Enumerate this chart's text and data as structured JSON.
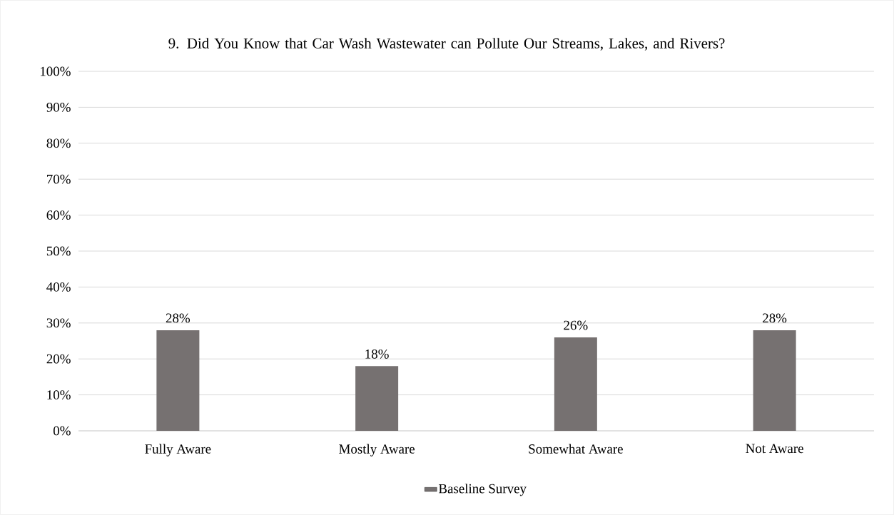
{
  "chart_data": {
    "type": "bar",
    "title": "9. Did You Know that Car Wash Wastewater can Pollute Our Streams, Lakes, and Rivers?",
    "categories": [
      "Fully Aware",
      "Mostly Aware",
      "Somewhat Aware",
      "Not Aware"
    ],
    "series": [
      {
        "name": "Baseline Survey",
        "color": "#767171",
        "values": [
          28,
          18,
          26,
          28
        ],
        "value_labels": [
          "28%",
          "18%",
          "26%",
          "28%"
        ]
      }
    ],
    "ylim": [
      0,
      100
    ],
    "yticks": [
      {
        "value": 0,
        "label": "0%"
      },
      {
        "value": 10,
        "label": "10%"
      },
      {
        "value": 20,
        "label": "20%"
      },
      {
        "value": 30,
        "label": "30%"
      },
      {
        "value": 40,
        "label": "40%"
      },
      {
        "value": 50,
        "label": "50%"
      },
      {
        "value": 60,
        "label": "60%"
      },
      {
        "value": 70,
        "label": "70%"
      },
      {
        "value": 80,
        "label": "80%"
      },
      {
        "value": 90,
        "label": "90%"
      },
      {
        "value": 100,
        "label": "100%"
      }
    ],
    "grid": "y",
    "legend": "bottom"
  }
}
